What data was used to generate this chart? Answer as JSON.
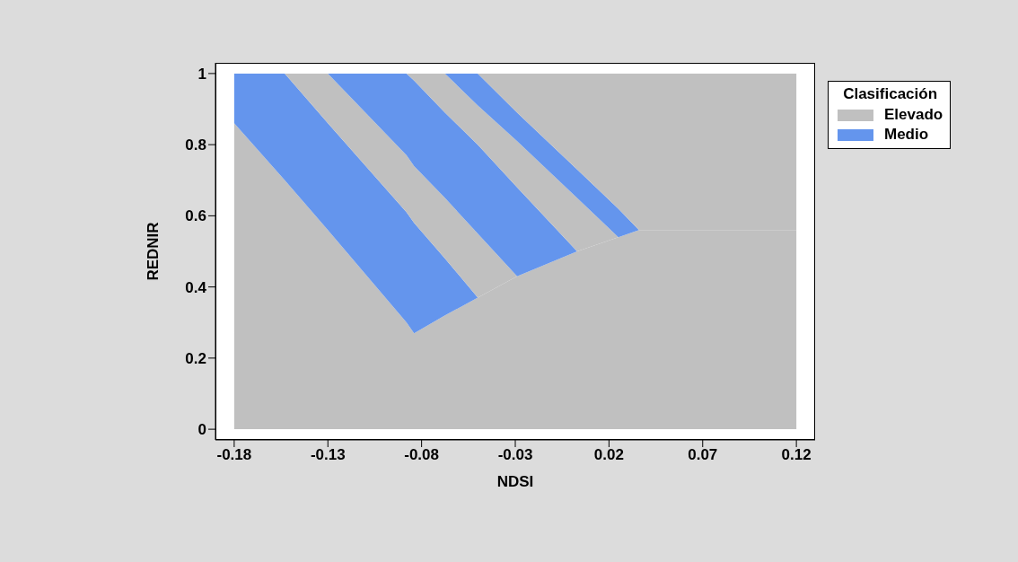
{
  "chart_data": {
    "type": "area",
    "xlabel": "NDSI",
    "ylabel": "REDNIR",
    "legend_title": "Clasificación",
    "legend": "top right",
    "stacked": true,
    "x": [
      -0.18,
      -0.153,
      -0.13,
      -0.088,
      -0.084,
      -0.0675,
      -0.05,
      -0.029,
      0.003,
      0.025,
      0.036,
      0.12
    ],
    "series": [
      {
        "name": "Elevado",
        "color": "#c0c0c0",
        "values": [
          0.86,
          0.7,
          0.56,
          0.3,
          0.27,
          0.32,
          0.37,
          0.43,
          0.5,
          0.54,
          0.56,
          0.56
        ]
      },
      {
        "name": "Medio",
        "color": "#6495ed",
        "values": [
          0.14,
          0.3,
          0.3,
          0.31,
          0.31,
          0.16,
          0,
          0,
          0,
          0,
          0,
          0
        ]
      },
      {
        "color": "#c0c0c0",
        "values": [
          0,
          0,
          0.14,
          0.16,
          0.16,
          0.17,
          0.18,
          0,
          0,
          0,
          0,
          0
        ]
      },
      {
        "color": "#6495ed",
        "values": [
          0,
          0,
          0,
          0.23,
          0.24,
          0.24,
          0.25,
          0.25,
          0,
          0,
          0,
          0
        ]
      },
      {
        "color": "#c0c0c0",
        "values": [
          0,
          0,
          0,
          0,
          0.02,
          0.11,
          0.11,
          0.13,
          0.15,
          0,
          0,
          0
        ]
      },
      {
        "color": "#6495ed",
        "values": [
          0,
          0,
          0,
          0,
          0,
          0,
          0.09,
          0.08,
          0.08,
          0.08,
          0,
          0
        ]
      },
      {
        "color": "#c0c0c0",
        "values": [
          0,
          0,
          0,
          0,
          0,
          0,
          0,
          0.11,
          0.27,
          0.38,
          0.44,
          0.44
        ]
      }
    ],
    "xlim": [
      -0.19,
      0.13
    ],
    "xticks": [
      -0.18,
      -0.13,
      -0.08,
      -0.03,
      0.02,
      0.07,
      0.12
    ],
    "ylim": [
      -0.03,
      1.03
    ],
    "yticks": [
      0,
      0.2,
      0.4,
      0.6,
      0.8,
      1
    ]
  }
}
